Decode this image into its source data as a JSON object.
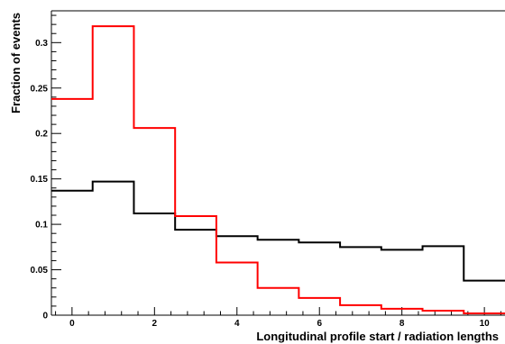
{
  "chart_data": {
    "type": "step",
    "xlabel": "Longitudinal profile start / radiation lengths",
    "ylabel": "Fraction of events",
    "xlim": [
      -0.5,
      10.5
    ],
    "ylim": [
      0,
      0.335
    ],
    "bin_edges": [
      -0.5,
      0.5,
      1.5,
      2.5,
      3.5,
      4.5,
      5.5,
      6.5,
      7.5,
      8.5,
      9.5,
      10.5
    ],
    "x_ticks": [
      0,
      2,
      4,
      6,
      8,
      10
    ],
    "y_ticks": [
      0,
      0.05,
      0.1,
      0.15,
      0.2,
      0.25,
      0.3
    ],
    "x_tick_labels": [
      "0",
      "2",
      "4",
      "6",
      "8",
      "10"
    ],
    "y_tick_labels": [
      "0",
      "0.05",
      "0.1",
      "0.15",
      "0.2",
      "0.25",
      "0.3"
    ],
    "grid": false,
    "series": [
      {
        "color": "#000000",
        "values": [
          0.137,
          0.147,
          0.112,
          0.094,
          0.087,
          0.083,
          0.08,
          0.075,
          0.072,
          0.076,
          0.038
        ]
      },
      {
        "color": "#ff0000",
        "values": [
          0.238,
          0.318,
          0.206,
          0.109,
          0.058,
          0.03,
          0.019,
          0.011,
          0.007,
          0.005,
          0.002
        ]
      }
    ]
  }
}
